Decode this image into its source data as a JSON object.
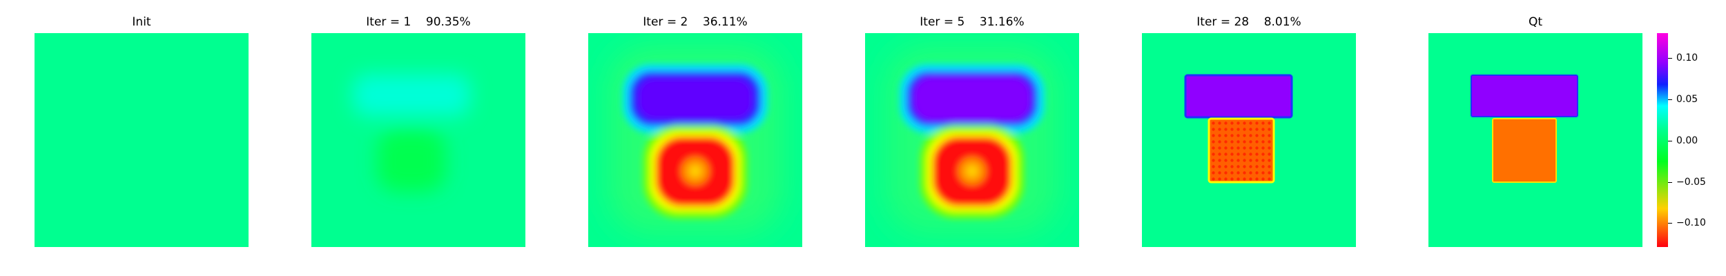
{
  "colors": {
    "background": "#00ff90",
    "purple": "#9000ff",
    "orange": "#ff7000",
    "blue": "#2020ff",
    "red": "#ff1010",
    "yellow": "#ffff00",
    "light_cyan": "#00ffd0",
    "green": "#00ff60"
  },
  "panels": [
    {
      "title": "Init"
    },
    {
      "title": "Iter = 1    90.35%"
    },
    {
      "title": "Iter = 2    36.11%"
    },
    {
      "title": "Iter = 5    31.16%"
    },
    {
      "title": "Iter = 28    8.01%"
    },
    {
      "title": "Qt"
    }
  ],
  "colorbar": {
    "min": -0.13,
    "max": 0.13,
    "ticks": [
      "0.10",
      "0.05",
      "0.00",
      "−0.05",
      "−0.10"
    ]
  }
}
